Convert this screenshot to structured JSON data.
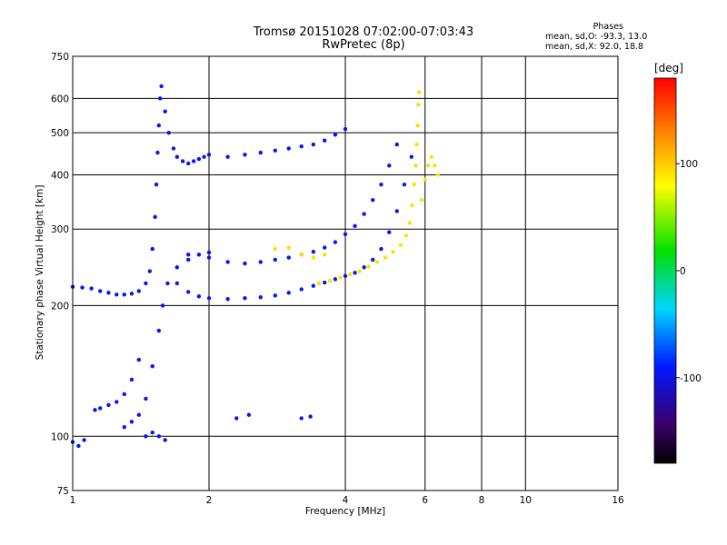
{
  "chart_data": {
    "type": "scatter",
    "title": "Tromsø 20151028 07:02:00-07:03:43",
    "subtitle": "RwPretec (8p)",
    "xlabel": "Frequency [MHz]",
    "ylabel": "Stationary phase Virtual Height [km]",
    "x_scale": "log",
    "y_scale": "log",
    "xlim": [
      1,
      16
    ],
    "ylim": [
      75,
      750
    ],
    "x_ticks": [
      1,
      2,
      4,
      6,
      8,
      10,
      16
    ],
    "y_ticks": [
      75,
      100,
      200,
      300,
      400,
      500,
      600,
      750
    ],
    "grid": true,
    "legend": {
      "title": "Phases",
      "lines": [
        "mean, sd,O:  -93.3, 13.0",
        "mean, sd,X:   92.0, 18.8"
      ],
      "position": "top-right"
    },
    "colorbar": {
      "label": "[deg]",
      "range": [
        -180,
        180
      ],
      "ticks": [
        100,
        0,
        -100
      ]
    },
    "series": [
      {
        "name": "O",
        "color_value": -93.3,
        "points": [
          [
            1.0,
            221
          ],
          [
            1.05,
            220
          ],
          [
            1.1,
            219
          ],
          [
            1.15,
            216
          ],
          [
            1.2,
            214
          ],
          [
            1.25,
            212
          ],
          [
            1.3,
            212
          ],
          [
            1.35,
            213
          ],
          [
            1.4,
            216
          ],
          [
            1.45,
            225
          ],
          [
            1.48,
            240
          ],
          [
            1.5,
            270
          ],
          [
            1.52,
            320
          ],
          [
            1.53,
            380
          ],
          [
            1.54,
            450
          ],
          [
            1.55,
            520
          ],
          [
            1.56,
            600
          ],
          [
            1.57,
            640
          ],
          [
            1.6,
            560
          ],
          [
            1.63,
            500
          ],
          [
            1.67,
            460
          ],
          [
            1.7,
            440
          ],
          [
            1.75,
            430
          ],
          [
            1.8,
            425
          ],
          [
            1.85,
            430
          ],
          [
            1.9,
            435
          ],
          [
            1.95,
            440
          ],
          [
            2.0,
            445
          ],
          [
            2.2,
            440
          ],
          [
            2.4,
            445
          ],
          [
            2.6,
            450
          ],
          [
            2.8,
            455
          ],
          [
            3.0,
            460
          ],
          [
            3.2,
            465
          ],
          [
            3.4,
            470
          ],
          [
            3.6,
            480
          ],
          [
            3.8,
            495
          ],
          [
            4.0,
            510
          ],
          [
            1.3,
            105
          ],
          [
            1.35,
            108
          ],
          [
            1.4,
            112
          ],
          [
            1.45,
            122
          ],
          [
            1.5,
            145
          ],
          [
            1.55,
            175
          ],
          [
            1.58,
            200
          ],
          [
            1.62,
            225
          ],
          [
            1.7,
            245
          ],
          [
            1.8,
            255
          ],
          [
            1.9,
            262
          ],
          [
            2.0,
            265
          ],
          [
            1.12,
            115
          ],
          [
            1.15,
            116
          ],
          [
            1.2,
            118
          ],
          [
            1.25,
            120
          ],
          [
            1.3,
            125
          ],
          [
            1.35,
            135
          ],
          [
            1.4,
            150
          ],
          [
            1.7,
            225
          ],
          [
            1.8,
            215
          ],
          [
            1.9,
            210
          ],
          [
            2.0,
            208
          ],
          [
            2.2,
            207
          ],
          [
            2.4,
            208
          ],
          [
            2.6,
            209
          ],
          [
            2.8,
            211
          ],
          [
            3.0,
            214
          ],
          [
            3.2,
            218
          ],
          [
            3.4,
            222
          ],
          [
            3.6,
            226
          ],
          [
            3.8,
            230
          ],
          [
            4.0,
            234
          ],
          [
            4.2,
            238
          ],
          [
            4.4,
            245
          ],
          [
            4.6,
            255
          ],
          [
            4.8,
            270
          ],
          [
            5.0,
            295
          ],
          [
            5.2,
            330
          ],
          [
            5.4,
            380
          ],
          [
            5.6,
            440
          ],
          [
            1.8,
            262
          ],
          [
            2.0,
            258
          ],
          [
            2.2,
            252
          ],
          [
            2.4,
            250
          ],
          [
            2.6,
            252
          ],
          [
            2.8,
            255
          ],
          [
            3.0,
            258
          ],
          [
            3.2,
            262
          ],
          [
            3.4,
            266
          ],
          [
            3.6,
            272
          ],
          [
            3.8,
            280
          ],
          [
            4.0,
            292
          ],
          [
            4.2,
            305
          ],
          [
            4.4,
            325
          ],
          [
            4.6,
            350
          ],
          [
            4.8,
            380
          ],
          [
            5.0,
            420
          ],
          [
            5.2,
            470
          ],
          [
            1.0,
            97
          ],
          [
            1.03,
            95
          ],
          [
            1.06,
            98
          ],
          [
            1.45,
            100
          ],
          [
            1.5,
            102
          ],
          [
            1.55,
            100
          ],
          [
            1.6,
            98
          ],
          [
            2.3,
            110
          ],
          [
            2.45,
            112
          ],
          [
            3.2,
            110
          ],
          [
            3.35,
            111
          ]
        ]
      },
      {
        "name": "X",
        "color_value": 92.0,
        "points": [
          [
            3.5,
            225
          ],
          [
            3.7,
            228
          ],
          [
            3.9,
            232
          ],
          [
            4.1,
            236
          ],
          [
            4.3,
            240
          ],
          [
            4.5,
            246
          ],
          [
            4.7,
            252
          ],
          [
            4.9,
            258
          ],
          [
            5.1,
            266
          ],
          [
            5.3,
            276
          ],
          [
            5.45,
            290
          ],
          [
            5.55,
            310
          ],
          [
            5.62,
            340
          ],
          [
            5.68,
            380
          ],
          [
            5.72,
            420
          ],
          [
            5.75,
            470
          ],
          [
            5.78,
            520
          ],
          [
            5.8,
            580
          ],
          [
            5.82,
            620
          ],
          [
            5.9,
            350
          ],
          [
            6.0,
            390
          ],
          [
            6.1,
            420
          ],
          [
            6.2,
            440
          ],
          [
            6.3,
            420
          ],
          [
            6.4,
            400
          ],
          [
            2.8,
            270
          ],
          [
            3.0,
            272
          ],
          [
            3.2,
            262
          ],
          [
            3.4,
            258
          ],
          [
            3.6,
            262
          ]
        ]
      }
    ]
  }
}
